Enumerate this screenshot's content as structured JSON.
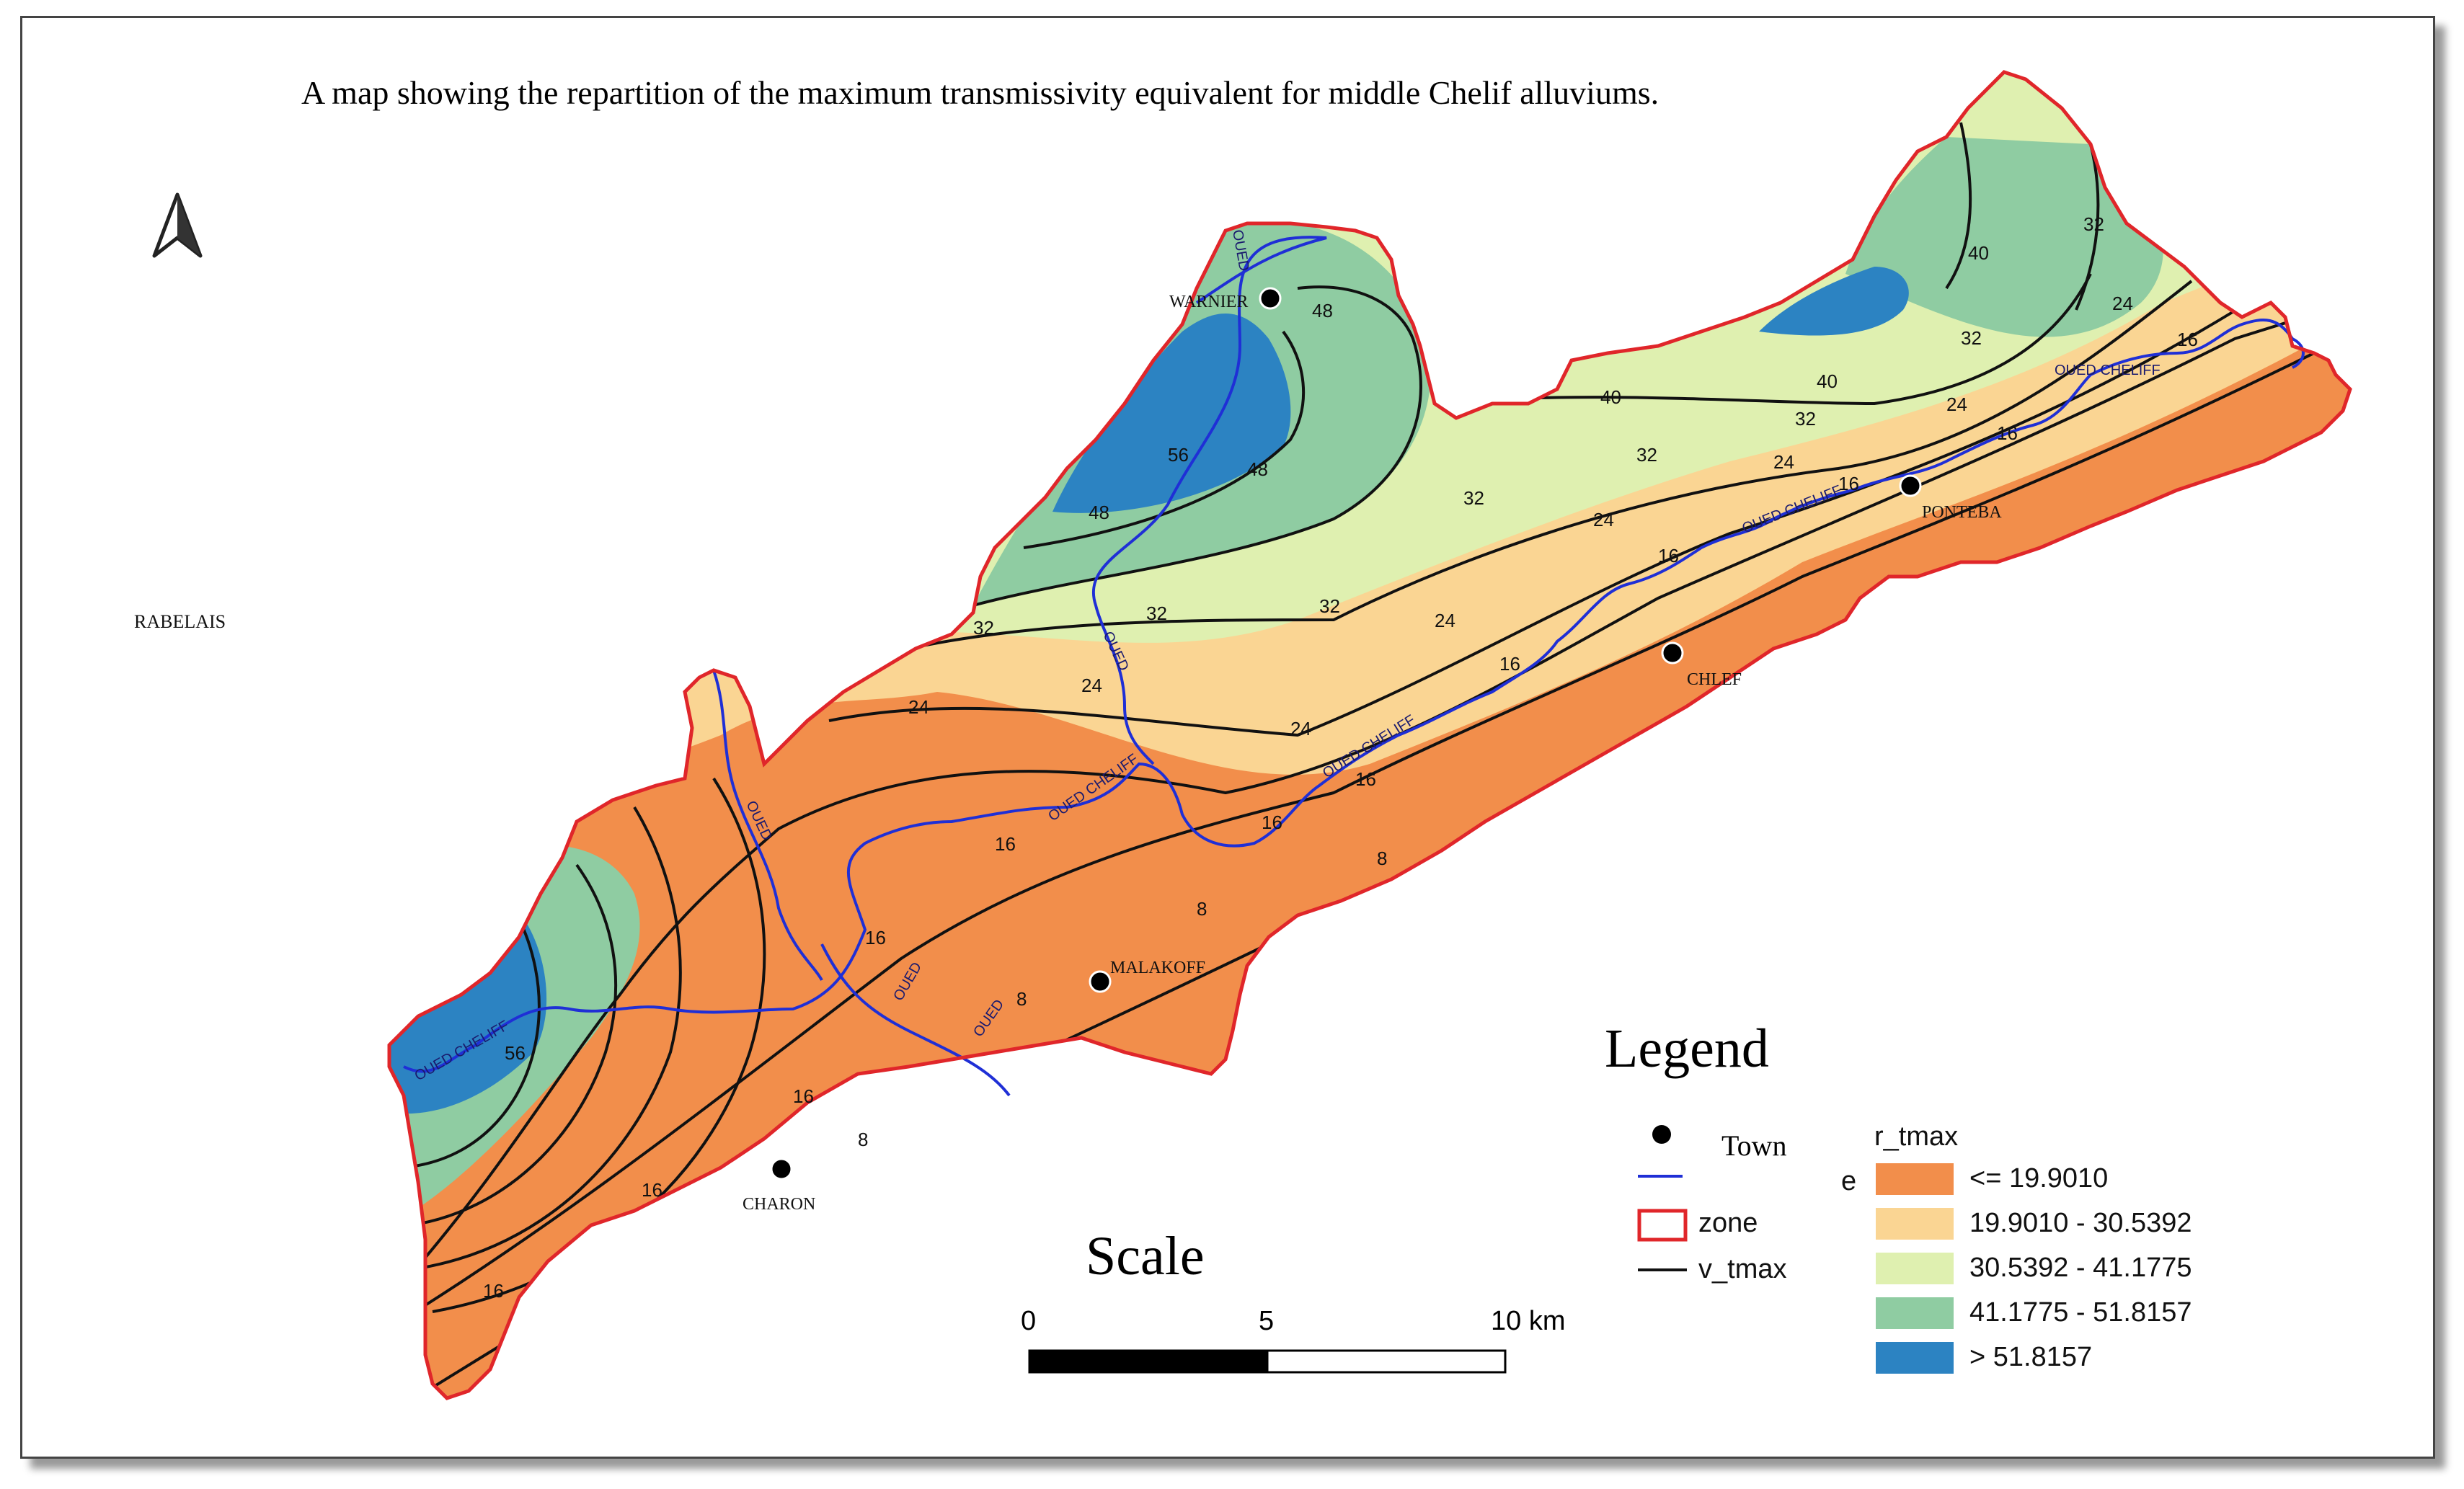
{
  "title": "A map showing the repartition of the maximum transmissivity equivalent for middle Chelif alluviums.",
  "north_arrow": "north-arrow-icon",
  "outside_label": "RABELAIS",
  "towns": [
    "WARNIER",
    "PONTEBA",
    "CHLEF",
    "MALAKOFF",
    "CHARON"
  ],
  "river_label": "OUED CHELIFF",
  "river_label_short": "OUED",
  "contours": [
    "8",
    "16",
    "24",
    "32",
    "40",
    "48",
    "56"
  ],
  "legend": {
    "title": "Legend",
    "town_label": "Town",
    "river_label_fragment": "e",
    "zone_label": "zone",
    "contour_label": "v_tmax",
    "raster_title": "r_tmax",
    "classes": [
      {
        "label": "<= 19.9010",
        "color": "#f28e4b"
      },
      {
        "label": "19.9010 - 30.5392",
        "color": "#fad593"
      },
      {
        "label": "30.5392 - 41.1775",
        "color": "#dff0b0"
      },
      {
        "label": "41.1775 - 51.8157",
        "color": "#8fcca2"
      },
      {
        "label": "> 51.8157",
        "color": "#2c83c2"
      }
    ]
  },
  "scale": {
    "title": "Scale",
    "labels": [
      "0",
      "5",
      "10 km"
    ]
  },
  "colors": {
    "zone_border": "#e0262a",
    "river": "#1f2fd6",
    "contour": "#111111"
  }
}
